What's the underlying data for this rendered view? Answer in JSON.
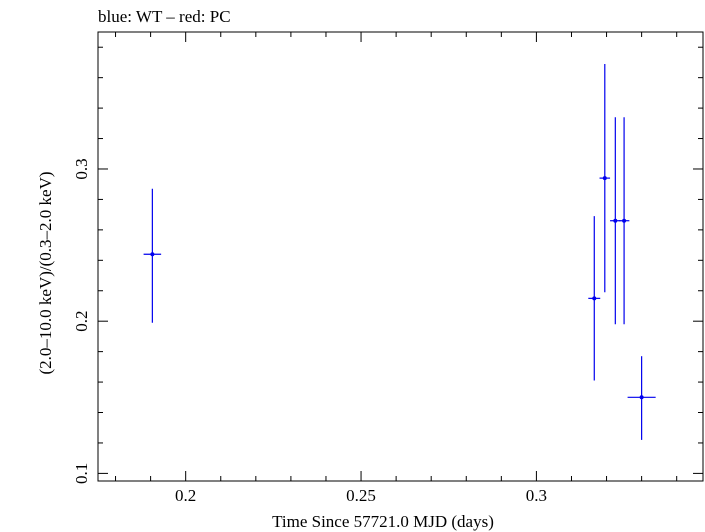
{
  "chart_data": {
    "type": "scatter",
    "title": "blue: WT – red: PC",
    "xlabel": "Time Since 57721.0 MJD (days)",
    "ylabel": "(2.0–10.0 keV)/(0.3–2.0 keV)",
    "xlim": [
      0.175,
      0.3475
    ],
    "ylim": [
      0.095,
      0.39
    ],
    "x_ticks": [
      {
        "value": 0.2,
        "label": "0.2"
      },
      {
        "value": 0.25,
        "label": "0.25"
      },
      {
        "value": 0.3,
        "label": "0.3"
      }
    ],
    "y_ticks": [
      {
        "value": 0.1,
        "label": "0.1"
      },
      {
        "value": 0.2,
        "label": "0.2"
      },
      {
        "value": 0.3,
        "label": "0.3"
      }
    ],
    "grid": false,
    "series": [
      {
        "name": "WT",
        "color": "#0000ee",
        "points": [
          {
            "x": 0.1905,
            "y": 0.244,
            "xerr": 0.0025,
            "ylow": 0.199,
            "yhigh": 0.287
          },
          {
            "x": 0.3165,
            "y": 0.215,
            "xerr": 0.0017,
            "ylow": 0.161,
            "yhigh": 0.269
          },
          {
            "x": 0.3195,
            "y": 0.294,
            "xerr": 0.0015,
            "ylow": 0.219,
            "yhigh": 0.369
          },
          {
            "x": 0.3225,
            "y": 0.266,
            "xerr": 0.0015,
            "ylow": 0.198,
            "yhigh": 0.334
          },
          {
            "x": 0.325,
            "y": 0.266,
            "xerr": 0.0015,
            "ylow": 0.198,
            "yhigh": 0.334
          },
          {
            "x": 0.33,
            "y": 0.15,
            "xerr": 0.004,
            "ylow": 0.122,
            "yhigh": 0.177
          }
        ]
      }
    ]
  }
}
